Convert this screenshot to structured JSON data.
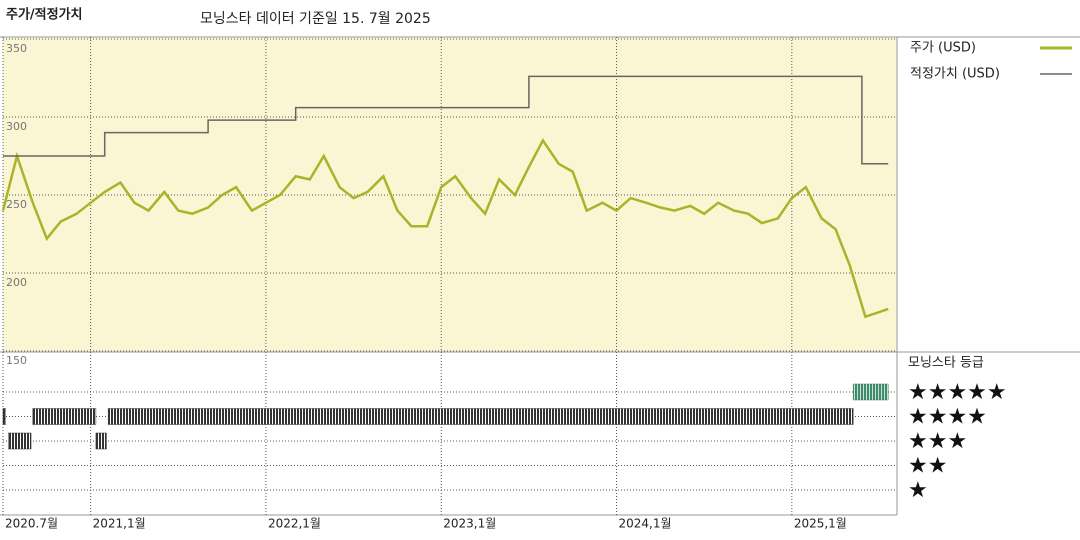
{
  "chart_data": {
    "type": "line",
    "title": "주가/적정가치",
    "subtitle": "모닝스타 데이터 기준일 15. 7월 2025",
    "xlim": [
      2020.5,
      2025.6
    ],
    "xticks": [
      {
        "value": 2020.5,
        "label": "2020.7월"
      },
      {
        "value": 2021.0,
        "label": "2021,1월"
      },
      {
        "value": 2022.0,
        "label": "2022,1월"
      },
      {
        "value": 2023.0,
        "label": "2023,1월"
      },
      {
        "value": 2024.0,
        "label": "2024,1월"
      },
      {
        "value": 2025.0,
        "label": "2025,1월"
      }
    ],
    "ylim": [
      150,
      350
    ],
    "yticks": [
      150,
      200,
      250,
      300,
      350
    ],
    "grid": true,
    "series": [
      {
        "name": "주가 (USD)",
        "color": "#aab32a",
        "x": [
          2020.5,
          2020.58,
          2020.67,
          2020.75,
          2020.83,
          2020.92,
          2021.0,
          2021.08,
          2021.17,
          2021.25,
          2021.33,
          2021.42,
          2021.5,
          2021.58,
          2021.67,
          2021.75,
          2021.83,
          2021.92,
          2022.0,
          2022.08,
          2022.17,
          2022.25,
          2022.33,
          2022.42,
          2022.5,
          2022.58,
          2022.67,
          2022.75,
          2022.83,
          2022.92,
          2023.0,
          2023.08,
          2023.17,
          2023.25,
          2023.33,
          2023.42,
          2023.5,
          2023.58,
          2023.67,
          2023.75,
          2023.83,
          2023.92,
          2024.0,
          2024.08,
          2024.17,
          2024.25,
          2024.33,
          2024.42,
          2024.5,
          2024.58,
          2024.67,
          2024.75,
          2024.83,
          2024.92,
          2025.0,
          2025.08,
          2025.17,
          2025.25,
          2025.33,
          2025.42,
          2025.5,
          2025.55
        ],
        "values": [
          240,
          275,
          245,
          222,
          233,
          238,
          245,
          252,
          258,
          245,
          240,
          252,
          240,
          238,
          242,
          250,
          255,
          240,
          245,
          250,
          262,
          260,
          275,
          255,
          248,
          252,
          262,
          240,
          230,
          230,
          255,
          262,
          248,
          238,
          260,
          250,
          268,
          285,
          270,
          265,
          240,
          245,
          240,
          248,
          245,
          242,
          240,
          243,
          238,
          245,
          240,
          238,
          232,
          235,
          248,
          255,
          235,
          228,
          205,
          172,
          175,
          177
        ]
      },
      {
        "name": "적정가치 (USD)",
        "color": "#666666",
        "x": [
          2020.5,
          2021.08,
          2021.08,
          2021.67,
          2021.67,
          2022.17,
          2022.17,
          2023.5,
          2023.5,
          2025.4,
          2025.4,
          2025.55
        ],
        "values": [
          275,
          275,
          290,
          290,
          298,
          298,
          306,
          306,
          326,
          326,
          270,
          270
        ]
      }
    ],
    "rating_title": "모닝스타 등급",
    "rating_levels": [
      {
        "stars": 5,
        "label": "★★★★★"
      },
      {
        "stars": 4,
        "label": "★★★★"
      },
      {
        "stars": 3,
        "label": "★★★"
      },
      {
        "stars": 2,
        "label": "★★"
      },
      {
        "stars": 1,
        "label": "★"
      }
    ],
    "ratings": [
      {
        "stars": 4,
        "start": 2020.5,
        "end": 2020.515
      },
      {
        "stars": 3,
        "start": 2020.53,
        "end": 2020.66
      },
      {
        "stars": 4,
        "start": 2020.67,
        "end": 2021.03
      },
      {
        "stars": 3,
        "start": 2021.03,
        "end": 2021.09
      },
      {
        "stars": 4,
        "start": 2021.1,
        "end": 2025.35
      },
      {
        "stars": 5,
        "start": 2025.35,
        "end": 2025.55
      }
    ],
    "rating_colors": {
      "5": "#3d8a6c",
      "4": "#333333",
      "3": "#333333",
      "2": "#333333",
      "1": "#333333"
    }
  }
}
